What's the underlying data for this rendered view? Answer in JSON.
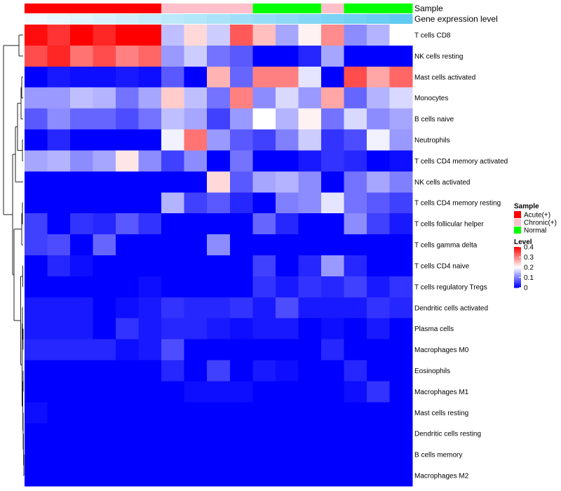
{
  "chart_data": {
    "type": "heatmap",
    "title": "",
    "annotation_tracks": [
      {
        "name": "Sample",
        "values": [
          "Acute(+)",
          "Acute(+)",
          "Acute(+)",
          "Acute(+)",
          "Acute(+)",
          "Acute(+)",
          "Chronic(+)",
          "Chronic(+)",
          "Chronic(+)",
          "Chronic(+)",
          "Normal",
          "Normal",
          "Normal",
          "Chronic(+)",
          "Normal",
          "Normal",
          "Normal"
        ]
      },
      {
        "name": "Gene expression level",
        "values": [
          0.0,
          0.06,
          0.12,
          0.18,
          0.24,
          0.3,
          0.36,
          0.42,
          0.48,
          0.54,
          0.6,
          0.66,
          0.72,
          0.78,
          0.84,
          0.9,
          0.96
        ]
      }
    ],
    "rows": [
      "T cells CD8",
      "NK cells resting",
      "Mast cells activated",
      "Monocytes",
      "B cells naive",
      "Neutrophils",
      "T cells CD4 memory activated",
      "NK cells activated",
      "T cells CD4 memory resting",
      "T cells follicular helper",
      "T cells gamma delta",
      "T cells CD4 naive",
      "T cells regulatory  Tregs",
      "Dendritic cells activated",
      "Plasma cells",
      "Macrophages M0",
      "Eosinophils",
      "Macrophages M1",
      "Mast cells resting",
      "Dendritic cells resting",
      "B cells memory",
      "Macrophages M2"
    ],
    "values": [
      [
        0.39,
        0.36,
        0.4,
        0.37,
        0.4,
        0.4,
        0.15,
        0.23,
        0.16,
        0.33,
        0.25,
        0.13,
        0.21,
        0.29,
        0.11,
        0.14,
        0.2
      ],
      [
        0.34,
        0.37,
        0.31,
        0.34,
        0.3,
        0.32,
        0.12,
        0.16,
        0.09,
        0.07,
        0.0,
        0.0,
        0.03,
        0.13,
        0.0,
        0.0,
        0.0
      ],
      [
        0.0,
        0.02,
        0.01,
        0.01,
        0.02,
        0.01,
        0.07,
        0.0,
        0.26,
        0.08,
        0.3,
        0.3,
        0.18,
        0.0,
        0.34,
        0.27,
        0.32
      ],
      [
        0.12,
        0.12,
        0.15,
        0.14,
        0.09,
        0.13,
        0.24,
        0.15,
        0.09,
        0.3,
        0.11,
        0.17,
        0.12,
        0.27,
        0.08,
        0.14,
        0.17
      ],
      [
        0.07,
        0.11,
        0.08,
        0.08,
        0.06,
        0.09,
        0.15,
        0.13,
        0.05,
        0.12,
        0.2,
        0.14,
        0.21,
        0.09,
        0.17,
        0.11,
        0.13
      ],
      [
        0.0,
        0.03,
        0.0,
        0.0,
        0.0,
        0.0,
        0.19,
        0.31,
        0.12,
        0.07,
        0.05,
        0.1,
        0.16,
        0.04,
        0.06,
        0.19,
        0.12
      ],
      [
        0.13,
        0.14,
        0.11,
        0.13,
        0.22,
        0.11,
        0.05,
        0.11,
        0.0,
        0.09,
        0.0,
        0.0,
        0.02,
        0.04,
        0.03,
        0.0,
        0.01
      ],
      [
        0.0,
        0.0,
        0.0,
        0.0,
        0.0,
        0.0,
        0.0,
        0.0,
        0.23,
        0.07,
        0.13,
        0.14,
        0.11,
        0.0,
        0.09,
        0.13,
        0.1
      ],
      [
        0.0,
        0.0,
        0.0,
        0.0,
        0.0,
        0.0,
        0.14,
        0.05,
        0.07,
        0.03,
        0.0,
        0.1,
        0.11,
        0.18,
        0.09,
        0.07,
        0.05
      ],
      [
        0.05,
        0.0,
        0.04,
        0.03,
        0.07,
        0.04,
        0.0,
        0.0,
        0.0,
        0.0,
        0.08,
        0.03,
        0.0,
        0.0,
        0.11,
        0.05,
        0.02
      ],
      [
        0.05,
        0.06,
        0.0,
        0.08,
        0.0,
        0.0,
        0.0,
        0.0,
        0.11,
        0.0,
        0.0,
        0.0,
        0.0,
        0.0,
        0.0,
        0.0,
        0.0
      ],
      [
        0.0,
        0.03,
        0.01,
        0.0,
        0.0,
        0.0,
        0.0,
        0.0,
        0.0,
        0.0,
        0.05,
        0.0,
        0.03,
        0.12,
        0.03,
        0.0,
        0.0
      ],
      [
        0.0,
        0.0,
        0.0,
        0.0,
        0.0,
        0.01,
        0.0,
        0.0,
        0.0,
        0.0,
        0.04,
        0.02,
        0.04,
        0.03,
        0.05,
        0.02,
        0.04
      ],
      [
        0.02,
        0.02,
        0.02,
        0.0,
        0.01,
        0.02,
        0.04,
        0.03,
        0.03,
        0.04,
        0.02,
        0.06,
        0.02,
        0.02,
        0.02,
        0.04,
        0.03
      ],
      [
        0.02,
        0.02,
        0.02,
        0.0,
        0.04,
        0.02,
        0.03,
        0.03,
        0.02,
        0.01,
        0.02,
        0.02,
        0.0,
        0.01,
        0.0,
        0.02,
        0.0
      ],
      [
        0.03,
        0.03,
        0.03,
        0.03,
        0.01,
        0.02,
        0.06,
        0.0,
        0.0,
        0.0,
        0.0,
        0.0,
        0.0,
        0.03,
        0.0,
        0.0,
        0.0
      ],
      [
        0.0,
        0.0,
        0.0,
        0.0,
        0.0,
        0.0,
        0.03,
        0.0,
        0.05,
        0.0,
        0.02,
        0.01,
        0.0,
        0.0,
        0.03,
        0.0,
        0.0
      ],
      [
        0.0,
        0.0,
        0.0,
        0.0,
        0.0,
        0.0,
        0.0,
        0.01,
        0.01,
        0.01,
        0.0,
        0.0,
        0.0,
        0.0,
        0.01,
        0.04,
        0.0
      ],
      [
        0.01,
        0.0,
        0.0,
        0.0,
        0.0,
        0.0,
        0.0,
        0.0,
        0.0,
        0.0,
        0.0,
        0.0,
        0.0,
        0.0,
        0.0,
        0.0,
        0.0
      ],
      [
        0.0,
        0.0,
        0.0,
        0.0,
        0.0,
        0.0,
        0.0,
        0.0,
        0.0,
        0.0,
        0.0,
        0.0,
        0.0,
        0.0,
        0.0,
        0.0,
        0.0
      ],
      [
        0.0,
        0.0,
        0.0,
        0.0,
        0.0,
        0.0,
        0.0,
        0.0,
        0.0,
        0.0,
        0.0,
        0.0,
        0.0,
        0.0,
        0.0,
        0.0,
        0.0
      ],
      [
        0.0,
        0.0,
        0.0,
        0.0,
        0.0,
        0.0,
        0.0,
        0.0,
        0.0,
        0.0,
        0.0,
        0.0,
        0.0,
        0.0,
        0.0,
        0.0,
        0.0
      ]
    ],
    "color_scale": {
      "title": "Level",
      "range": [
        0,
        0.4
      ],
      "ticks": [
        0.4,
        0.3,
        0.2,
        0.1,
        0
      ],
      "tick_labels": [
        "0.4",
        "0.3",
        "0.2",
        "0.1",
        "0"
      ],
      "colors": [
        "#0000ff",
        "#ffffff",
        "#ff0000"
      ]
    },
    "sample_legend": {
      "title": "Sample",
      "entries": [
        {
          "label": "Acute(+)",
          "color": "#ff0000"
        },
        {
          "label": "Chronic(+)",
          "color": "#ffc0cb"
        },
        {
          "label": "Normal",
          "color": "#00ff00"
        }
      ]
    },
    "expression_track_colors": [
      "#f2fbff",
      "#5bc8f0"
    ],
    "row_dendrogram": true
  }
}
